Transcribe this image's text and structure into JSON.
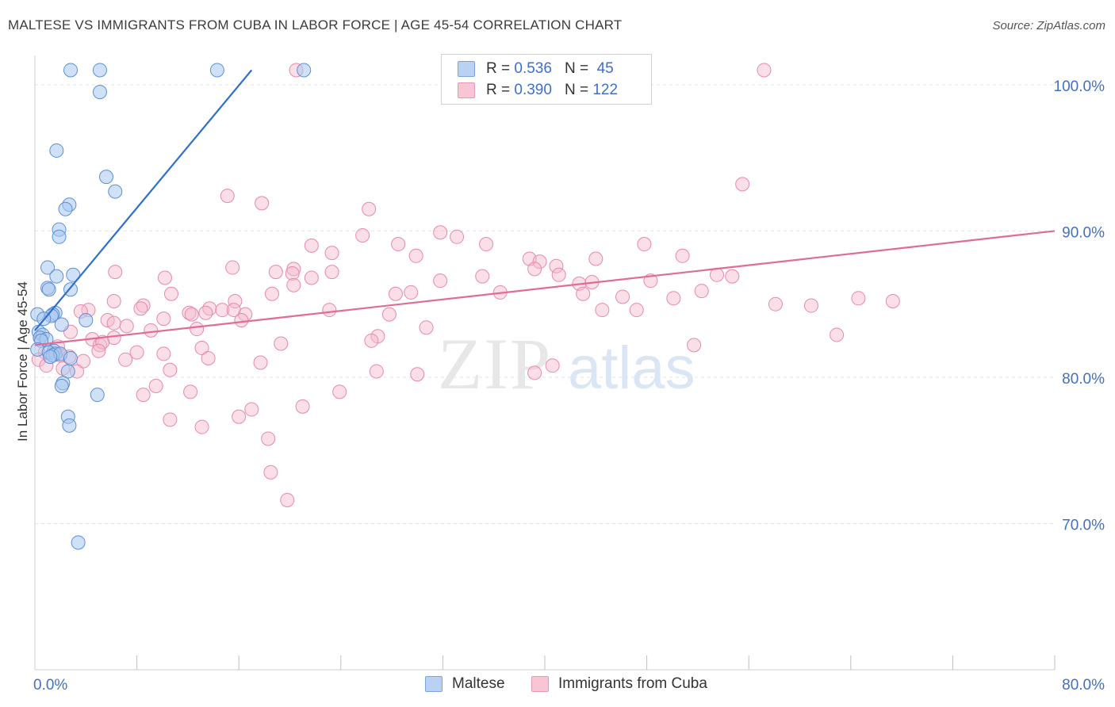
{
  "title": "MALTESE VS IMMIGRANTS FROM CUBA IN LABOR FORCE | AGE 45-54 CORRELATION CHART",
  "source": "Source: ZipAtlas.com",
  "watermark": {
    "zip": "ZIP",
    "atlas": "atlas"
  },
  "legend": {
    "series1": {
      "r_label": "R =",
      "r_value": "0.536",
      "n_label": "N =",
      "n_value": "45"
    },
    "series2": {
      "r_label": "R =",
      "r_value": "0.390",
      "n_label": "N =",
      "n_value": "122"
    }
  },
  "bottom_legend": {
    "series1": "Maltese",
    "series2": "Immigrants from Cuba"
  },
  "colors": {
    "blue_fill": "#a9c8f0",
    "blue_stroke": "#5b8fd6",
    "blue_line": "#2f6fcc",
    "pink_fill": "#f5b8cc",
    "pink_stroke": "#e58aa8",
    "pink_line": "#e06c96",
    "axis_label": "#3f6fc8",
    "grid": "#e3e3e3"
  },
  "chart_data": {
    "type": "scatter",
    "title": "MALTESE VS IMMIGRANTS FROM CUBA IN LABOR FORCE | AGE 45-54 CORRELATION CHART",
    "xlabel": "",
    "ylabel": "In Labor Force | Age 45-54",
    "xlim": [
      0,
      80
    ],
    "ylim": [
      60.0,
      102.0
    ],
    "x_tick_labels": [
      {
        "value": 0,
        "label": "0.0%"
      },
      {
        "value": 80,
        "label": "80.0%"
      }
    ],
    "y_tick_labels": [
      {
        "value": 100,
        "label": "100.0%"
      },
      {
        "value": 90,
        "label": "90.0%"
      },
      {
        "value": 80,
        "label": "80.0%"
      },
      {
        "value": 70,
        "label": "70.0%"
      }
    ],
    "x_minor_ticks": [
      8,
      16,
      24,
      32,
      40,
      48,
      56,
      64,
      72
    ],
    "series": [
      {
        "name": "Maltese",
        "color": "blue",
        "r": 0.536,
        "n": 45,
        "trend": {
          "x": [
            0,
            17
          ],
          "y": [
            83.2,
            101.0
          ]
        },
        "points": [
          [
            2.8,
            101
          ],
          [
            5.1,
            101
          ],
          [
            14.3,
            101
          ],
          [
            21.1,
            101
          ],
          [
            5.1,
            99.5
          ],
          [
            1.7,
            95.5
          ],
          [
            5.6,
            93.7
          ],
          [
            6.3,
            92.7
          ],
          [
            2.7,
            91.8
          ],
          [
            2.4,
            91.5
          ],
          [
            1.9,
            90.1
          ],
          [
            1.9,
            89.6
          ],
          [
            1.0,
            87.5
          ],
          [
            3.0,
            87.0
          ],
          [
            1.7,
            86.9
          ],
          [
            1.0,
            86.1
          ],
          [
            1.1,
            86.0
          ],
          [
            2.8,
            86.0
          ],
          [
            1.6,
            84.4
          ],
          [
            1.4,
            84.3
          ],
          [
            0.2,
            84.3
          ],
          [
            1.3,
            84.2
          ],
          [
            0.7,
            84.0
          ],
          [
            4.0,
            83.9
          ],
          [
            2.1,
            83.6
          ],
          [
            0.3,
            83.1
          ],
          [
            0.6,
            82.9
          ],
          [
            0.4,
            82.7
          ],
          [
            0.9,
            82.6
          ],
          [
            0.5,
            82.5
          ],
          [
            0.2,
            81.9
          ],
          [
            1.5,
            81.8
          ],
          [
            1.1,
            81.7
          ],
          [
            1.6,
            81.6
          ],
          [
            1.4,
            81.5
          ],
          [
            2.0,
            81.6
          ],
          [
            1.2,
            81.4
          ],
          [
            2.8,
            81.3
          ],
          [
            2.6,
            80.4
          ],
          [
            2.2,
            79.6
          ],
          [
            2.1,
            79.4
          ],
          [
            4.9,
            78.8
          ],
          [
            2.6,
            77.3
          ],
          [
            2.7,
            76.7
          ],
          [
            3.4,
            68.7
          ]
        ]
      },
      {
        "name": "Immigrants from Cuba",
        "color": "pink",
        "r": 0.39,
        "n": 122,
        "trend": {
          "x": [
            0,
            80
          ],
          "y": [
            82.2,
            90.0
          ]
        },
        "points": [
          [
            20.5,
            101
          ],
          [
            57.2,
            101
          ],
          [
            55.5,
            93.2
          ],
          [
            15.1,
            92.4
          ],
          [
            17.8,
            91.9
          ],
          [
            26.2,
            91.5
          ],
          [
            25.7,
            89.7
          ],
          [
            31.8,
            89.9
          ],
          [
            33.1,
            89.6
          ],
          [
            21.7,
            89.0
          ],
          [
            28.5,
            89.1
          ],
          [
            35.4,
            89.1
          ],
          [
            47.8,
            89.1
          ],
          [
            23.3,
            88.5
          ],
          [
            29.9,
            88.3
          ],
          [
            38.8,
            88.1
          ],
          [
            44.0,
            88.1
          ],
          [
            50.8,
            88.3
          ],
          [
            39.6,
            87.9
          ],
          [
            40.9,
            87.6
          ],
          [
            15.5,
            87.5
          ],
          [
            39.2,
            87.4
          ],
          [
            20.3,
            87.4
          ],
          [
            18.9,
            87.2
          ],
          [
            6.3,
            87.2
          ],
          [
            20.2,
            87.1
          ],
          [
            23.3,
            87.2
          ],
          [
            41.1,
            87.0
          ],
          [
            35.1,
            86.9
          ],
          [
            53.5,
            87.0
          ],
          [
            54.7,
            86.9
          ],
          [
            10.2,
            86.8
          ],
          [
            21.7,
            86.8
          ],
          [
            48.3,
            86.6
          ],
          [
            31.8,
            86.6
          ],
          [
            43.7,
            86.5
          ],
          [
            42.7,
            86.4
          ],
          [
            20.3,
            86.3
          ],
          [
            52.3,
            85.9
          ],
          [
            36.5,
            85.8
          ],
          [
            28.3,
            85.7
          ],
          [
            29.5,
            85.8
          ],
          [
            18.6,
            85.7
          ],
          [
            43.0,
            85.7
          ],
          [
            10.7,
            85.7
          ],
          [
            46.1,
            85.5
          ],
          [
            50.1,
            85.4
          ],
          [
            64.6,
            85.4
          ],
          [
            67.3,
            85.2
          ],
          [
            6.2,
            85.2
          ],
          [
            15.7,
            85.2
          ],
          [
            58.1,
            85.0
          ],
          [
            60.9,
            84.9
          ],
          [
            8.5,
            84.9
          ],
          [
            8.3,
            84.7
          ],
          [
            4.2,
            84.6
          ],
          [
            3.6,
            84.5
          ],
          [
            13.7,
            84.7
          ],
          [
            14.7,
            84.6
          ],
          [
            15.6,
            84.6
          ],
          [
            23.1,
            84.6
          ],
          [
            44.5,
            84.6
          ],
          [
            47.2,
            84.6
          ],
          [
            12.1,
            84.4
          ],
          [
            12.3,
            84.3
          ],
          [
            13.4,
            84.4
          ],
          [
            16.5,
            84.3
          ],
          [
            27.8,
            84.3
          ],
          [
            10.1,
            84.0
          ],
          [
            16.2,
            83.9
          ],
          [
            5.7,
            83.9
          ],
          [
            6.2,
            83.7
          ],
          [
            7.2,
            83.5
          ],
          [
            9.1,
            83.2
          ],
          [
            12.7,
            83.3
          ],
          [
            30.7,
            83.4
          ],
          [
            2.8,
            83.1
          ],
          [
            0.4,
            82.7
          ],
          [
            6.2,
            82.7
          ],
          [
            4.5,
            82.6
          ],
          [
            5.1,
            82.2
          ],
          [
            5.3,
            82.4
          ],
          [
            62.9,
            82.9
          ],
          [
            19.3,
            82.3
          ],
          [
            26.9,
            82.8
          ],
          [
            26.4,
            82.5
          ],
          [
            13.1,
            82.0
          ],
          [
            1.8,
            82.1
          ],
          [
            5.0,
            81.8
          ],
          [
            0.8,
            81.7
          ],
          [
            8.0,
            81.7
          ],
          [
            10.1,
            81.6
          ],
          [
            2.0,
            81.5
          ],
          [
            2.7,
            81.4
          ],
          [
            0.3,
            81.2
          ],
          [
            7.1,
            81.2
          ],
          [
            3.8,
            81.1
          ],
          [
            13.6,
            81.3
          ],
          [
            17.7,
            81.0
          ],
          [
            0.9,
            80.8
          ],
          [
            2.2,
            80.6
          ],
          [
            3.3,
            80.4
          ],
          [
            10.6,
            80.5
          ],
          [
            30.0,
            80.2
          ],
          [
            39.2,
            80.3
          ],
          [
            40.6,
            80.8
          ],
          [
            26.8,
            80.4
          ],
          [
            9.5,
            79.4
          ],
          [
            12.2,
            79.0
          ],
          [
            23.9,
            79.0
          ],
          [
            8.5,
            78.8
          ],
          [
            21.0,
            78.0
          ],
          [
            17.0,
            77.8
          ],
          [
            10.6,
            77.1
          ],
          [
            16.0,
            77.3
          ],
          [
            13.1,
            76.6
          ],
          [
            18.3,
            75.8
          ],
          [
            18.5,
            73.5
          ],
          [
            19.8,
            71.6
          ],
          [
            51.7,
            82.2
          ]
        ]
      }
    ]
  }
}
